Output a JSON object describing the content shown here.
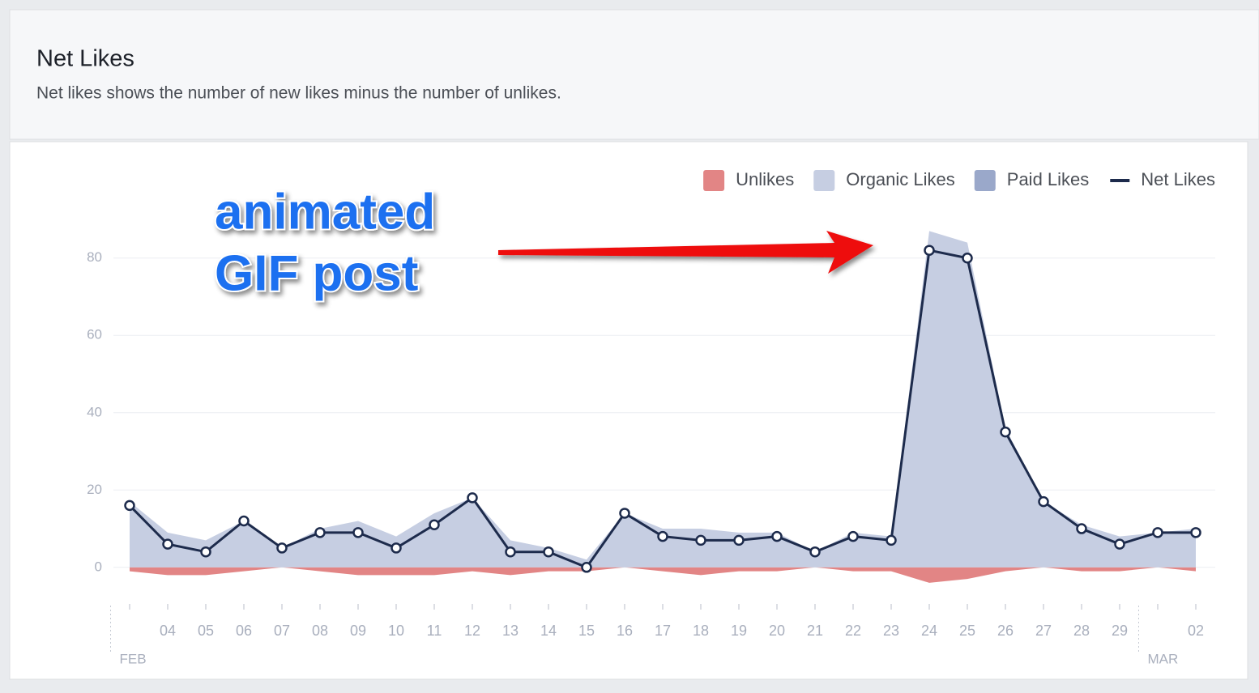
{
  "header": {
    "title": "Net Likes",
    "subtitle": "Net likes shows the number of new likes minus the number of unlikes."
  },
  "chart_data": {
    "type": "area",
    "annotation": [
      "animated",
      "GIF post"
    ],
    "categories": [
      null,
      "04",
      "05",
      "06",
      "07",
      "08",
      "09",
      "10",
      "11",
      "12",
      "13",
      "14",
      "15",
      "16",
      "17",
      "18",
      "19",
      "20",
      "21",
      "22",
      "23",
      "24",
      "25",
      "26",
      "27",
      "28",
      "29",
      null,
      "02"
    ],
    "x_groups": [
      {
        "label": "FEB",
        "start": 0
      },
      {
        "label": "MAR",
        "start": 27
      }
    ],
    "series": [
      {
        "name": "Unlikes",
        "color": "#e28585",
        "values": [
          -1,
          -2,
          -2,
          -1,
          0,
          -1,
          -2,
          -2,
          -2,
          -1,
          -2,
          -1,
          -1,
          0,
          -1,
          -2,
          -1,
          -1,
          0,
          -1,
          -1,
          -4,
          -3,
          -1,
          0,
          -1,
          -1,
          0,
          -1
        ]
      },
      {
        "name": "Organic Likes",
        "color": "#c6cee2",
        "values": [
          17,
          9,
          7,
          12,
          5,
          10,
          12,
          8,
          14,
          18,
          7,
          5,
          2,
          14,
          10,
          10,
          9,
          9,
          4,
          9,
          8,
          87,
          84,
          36,
          17,
          11,
          8,
          9,
          10
        ]
      },
      {
        "name": "Paid Likes",
        "color": "#9aa8ca",
        "values": [
          0,
          0,
          0,
          0,
          0,
          0,
          0,
          0,
          0,
          0,
          0,
          0,
          0,
          0,
          0,
          0,
          0,
          0,
          0,
          0,
          0,
          0,
          0,
          0,
          0,
          0,
          0,
          0,
          0
        ]
      },
      {
        "name": "Net Likes",
        "color": "#1d2b4c",
        "values": [
          16,
          6,
          4,
          12,
          5,
          9,
          9,
          5,
          11,
          18,
          4,
          4,
          0,
          14,
          8,
          7,
          7,
          8,
          4,
          8,
          7,
          82,
          80,
          35,
          17,
          10,
          6,
          9,
          9
        ]
      }
    ],
    "ylim": [
      -8,
      90
    ],
    "yticks": [
      0,
      20,
      40,
      60,
      80
    ],
    "grid": true
  }
}
